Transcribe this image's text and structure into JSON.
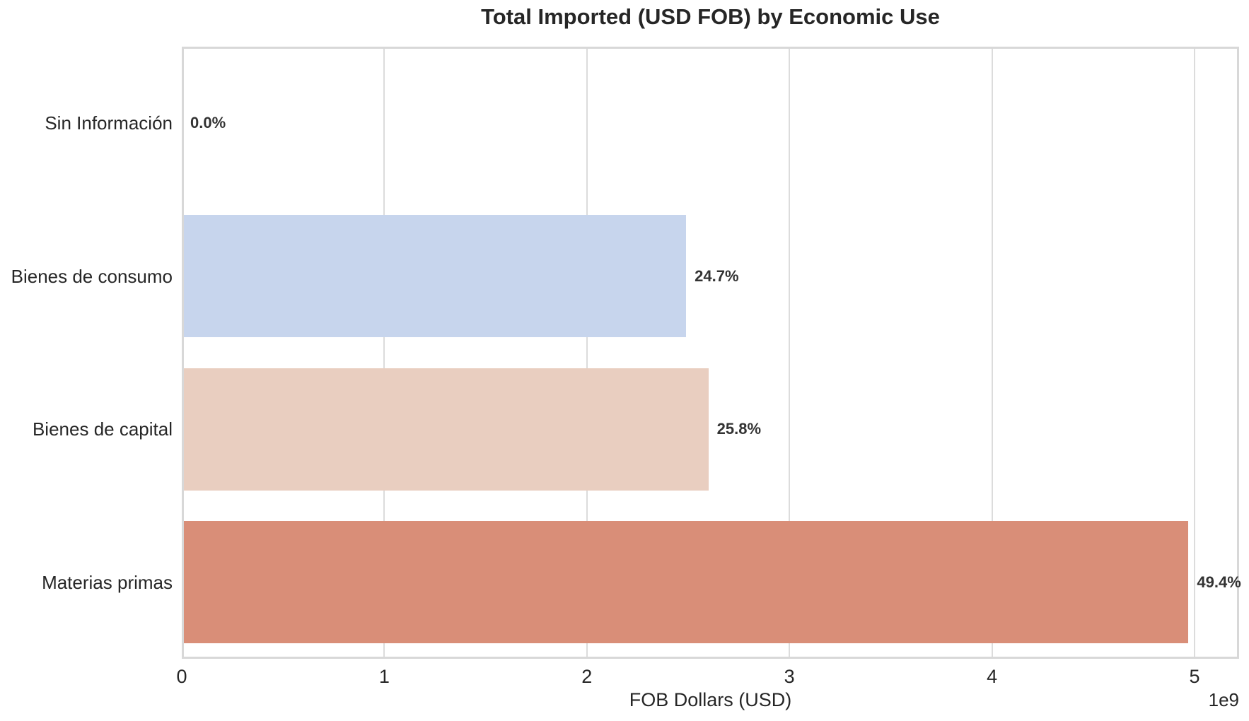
{
  "chart_data": {
    "type": "bar",
    "orientation": "horizontal",
    "title": "Total Imported (USD FOB) by Economic Use",
    "xlabel": "FOB Dollars (USD)",
    "ylabel": "",
    "categories": [
      "Sin Información",
      "Bienes de consumo",
      "Bienes de capital",
      "Materias primas"
    ],
    "values": [
      0,
      2490000000,
      2600000000,
      4970000000
    ],
    "percent_labels": [
      "0.0%",
      "24.7%",
      "25.8%",
      "49.4%"
    ],
    "bar_colors": [
      "#6789ee",
      "#c7d5ed",
      "#e9cec0",
      "#d98e78"
    ],
    "x_ticks": [
      0,
      1,
      2,
      3,
      4,
      5
    ],
    "x_tick_labels": [
      "0",
      "1",
      "2",
      "3",
      "4",
      "5"
    ],
    "x_offset_label": "1e9",
    "xlim": [
      0,
      5220000000
    ],
    "x_scale_factor": 1000000000,
    "grid": "vertical",
    "legend": "none",
    "grid_color": "#dcdcdc",
    "spine_color": "#d8d8d8",
    "label_color": "#262626",
    "percent_label_color": "#333333",
    "background_color": "#ffffff"
  }
}
